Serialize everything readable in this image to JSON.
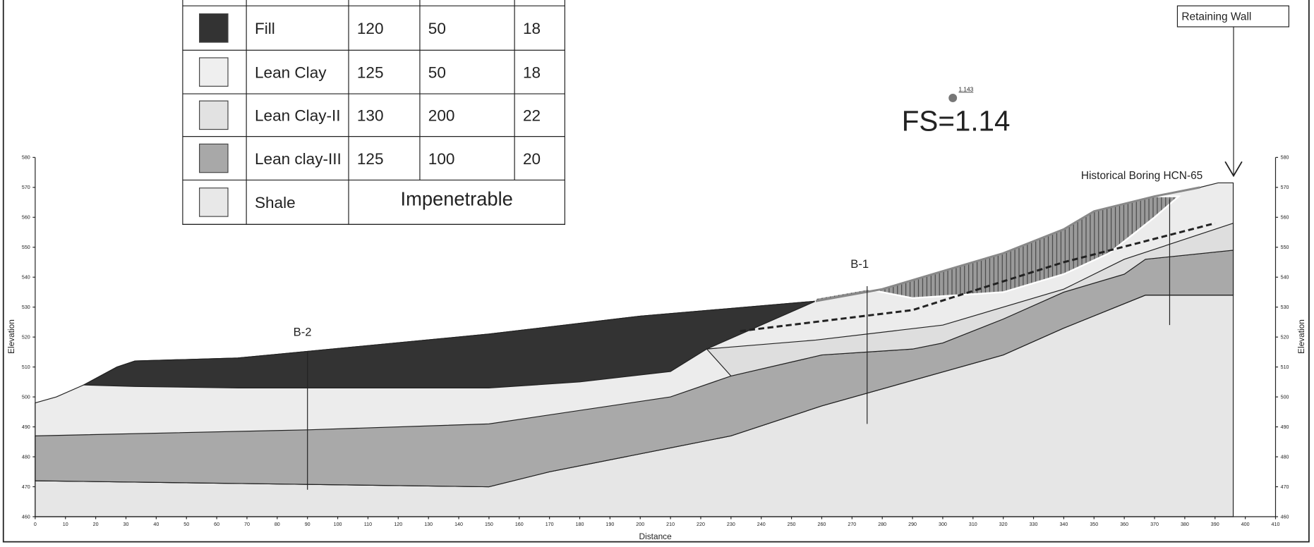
{
  "legend_table": {
    "rows": [
      {
        "label": "Fill",
        "values": [
          120,
          50,
          18
        ]
      },
      {
        "label": "Lean Clay",
        "values": [
          125,
          50,
          18
        ]
      },
      {
        "label": "Lean Clay-II",
        "values": [
          130,
          200,
          22
        ]
      },
      {
        "label": "Lean clay-III",
        "values": [
          125,
          100,
          20
        ]
      },
      {
        "label": "Shale",
        "note": "Impenetrable"
      }
    ]
  },
  "axes": {
    "x_label": "Distance",
    "y_label": "Elevation",
    "xticks": [
      0,
      10,
      20,
      30,
      40,
      50,
      60,
      70,
      80,
      90,
      100,
      110,
      120,
      130,
      140,
      150,
      160,
      170,
      180,
      190,
      200,
      210,
      220,
      230,
      240,
      250,
      260,
      270,
      280,
      290,
      300,
      310,
      320,
      330,
      340,
      350,
      360,
      370,
      380,
      390,
      400,
      410
    ],
    "yticks": [
      460,
      470,
      480,
      490,
      500,
      510,
      520,
      530,
      540,
      550,
      560,
      570,
      580
    ]
  },
  "labels": {
    "boring_b2": "B-2",
    "boring_b1": "B-1",
    "boring_hcn": "Historical Boring HCN-65",
    "retaining_wall": "Retaining Wall",
    "fs": "FS=1.14",
    "fs_point": "1.143"
  }
}
